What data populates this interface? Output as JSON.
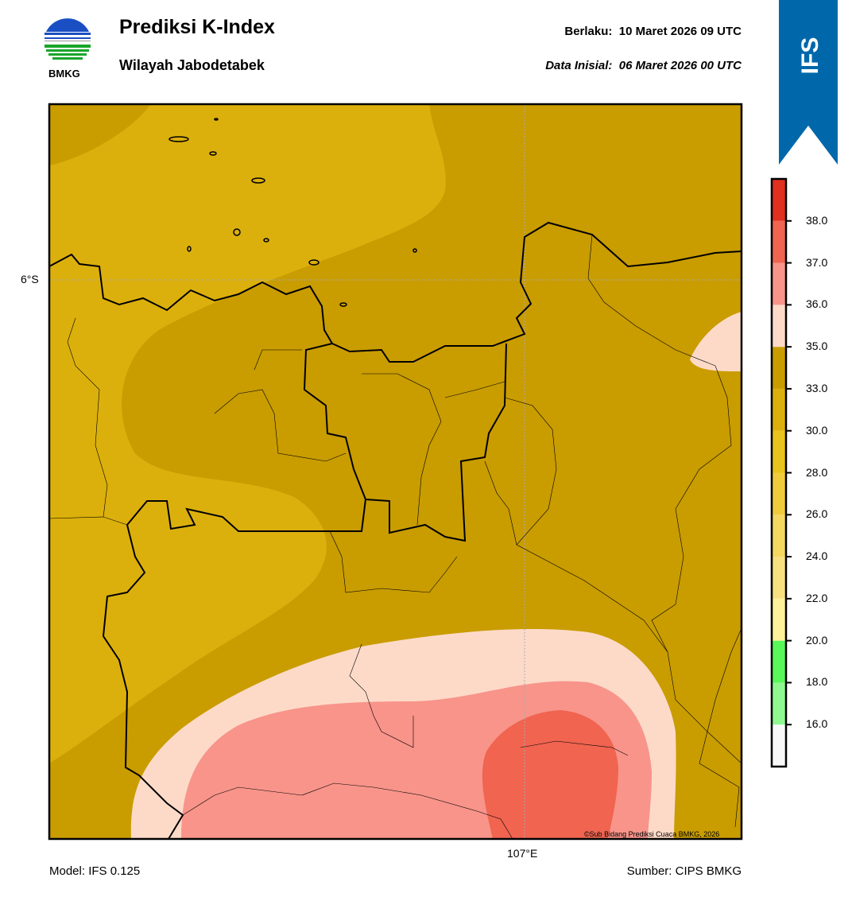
{
  "header": {
    "title": "Prediksi K-Index",
    "subtitle": "Wilayah Jabodetabek",
    "valid_label": "Berlaku:",
    "valid_time": "10 Maret 2026 09 UTC",
    "init_label": "Data Inisial:",
    "init_time": "06 Maret 2026 00 UTC",
    "logo_text": "BMKG",
    "model_badge": "IFS"
  },
  "map": {
    "lat_label": "6°S",
    "lon_label": "107°E",
    "copyright": "©Sub Bidang Prediksi Cuaca BMKG, 2026"
  },
  "legend": {
    "labels": [
      "16.0",
      "18.0",
      "20.0",
      "22.0",
      "24.0",
      "26.0",
      "28.0",
      "30.0",
      "33.0",
      "35.0",
      "36.0",
      "37.0",
      "38.0"
    ],
    "colors": [
      "#f8f8f8",
      "#90f890",
      "#58f858",
      "#fff09a",
      "#f8e080",
      "#f4d860",
      "#f0cc3c",
      "#e8c41c",
      "#dcb00c",
      "#c99c00",
      "#fddac8",
      "#f8948a",
      "#f06450",
      "#e03020"
    ]
  },
  "footer": {
    "model": "Model: IFS 0.125",
    "source": "Sumber: CIPS BMKG"
  }
}
